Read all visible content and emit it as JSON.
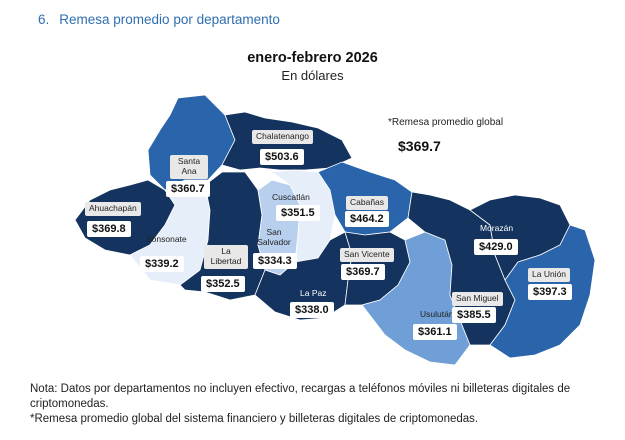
{
  "section": {
    "number": "6.",
    "title": "Remesa promedio por departamento"
  },
  "map": {
    "title": "enero-febrero 2026",
    "subtitle": "En dólares",
    "global_label": "*Remesa promedio global",
    "global_value": "$369.7"
  },
  "departments": [
    {
      "name": "Chalatenango",
      "value": "$503.6",
      "amount": 503.6
    },
    {
      "name": "Santa Ana",
      "value": "$360.7",
      "amount": 360.7
    },
    {
      "name": "Ahuachapán",
      "value": "$369.8",
      "amount": 369.8
    },
    {
      "name": "Sonsonate",
      "value": "$339.2",
      "amount": 339.2
    },
    {
      "name": "La Libertad",
      "value": "$352.5",
      "amount": 352.5
    },
    {
      "name": "San Salvador",
      "value": "$334.3",
      "amount": 334.3
    },
    {
      "name": "Cuscatlán",
      "value": "$351.5",
      "amount": 351.5
    },
    {
      "name": "Cabañas",
      "value": "$464.2",
      "amount": 464.2
    },
    {
      "name": "San Vicente",
      "value": "$369.7",
      "amount": 369.7
    },
    {
      "name": "La Paz",
      "value": "$338.0",
      "amount": 338.0
    },
    {
      "name": "Usulután",
      "value": "$361.1",
      "amount": 361.1
    },
    {
      "name": "San Miguel",
      "value": "$385.5",
      "amount": 385.5
    },
    {
      "name": "Morazán",
      "value": "$429.0",
      "amount": 429.0
    },
    {
      "name": "La Unión",
      "value": "$397.3",
      "amount": 397.3
    }
  ],
  "colors": {
    "dark": "#14335e",
    "mid": "#2a64ab",
    "medium": "#6f9fd6",
    "light": "#b8d0ee",
    "lightest": "#e6eef9",
    "title": "#2f6fb0"
  },
  "notes": {
    "line1": "Nota: Datos por departamentos no incluyen efectivo, recargas a teléfonos móviles ni billeteras digitales de criptomonedas.",
    "line2": "*Remesa promedio global del sistema financiero y billeteras digitales de criptomonedas."
  }
}
